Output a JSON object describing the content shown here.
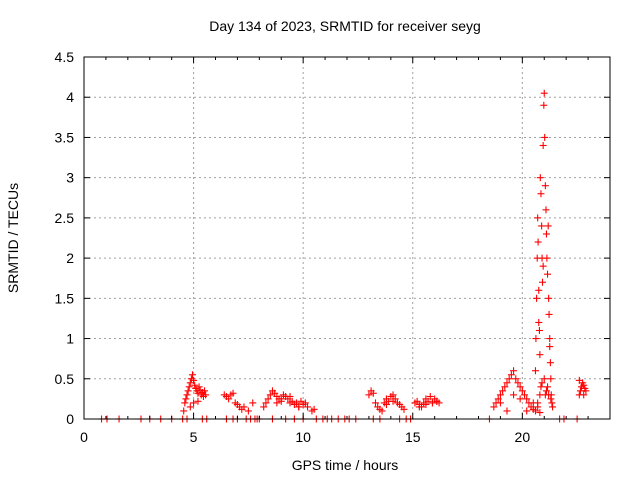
{
  "chart_data": {
    "type": "scatter",
    "title": "Day 134 of 2023, SRMTID for receiver seyg",
    "xlabel": "GPS time / hours",
    "ylabel": "SRMTID / TECUs",
    "xlim": [
      0,
      24
    ],
    "ylim": [
      0,
      4.5
    ],
    "grid": true,
    "xticks": [
      0,
      5,
      10,
      15,
      20
    ],
    "yticks": [
      0,
      0.5,
      1,
      1.5,
      2,
      2.5,
      3,
      3.5,
      4,
      4.5
    ],
    "xtick_labels": [
      "0",
      "5",
      "10",
      "15",
      "20"
    ],
    "ytick_labels": [
      "0",
      "0.5",
      "1",
      "1.5",
      "2",
      "2.5",
      "3",
      "3.5",
      "4",
      "4.5"
    ],
    "series": [
      {
        "name": "SRMTID",
        "marker": "+",
        "color": "#ff0000",
        "x": [
          0.8,
          1.05,
          1.6,
          2.6,
          3.0,
          3.5,
          4.0,
          4.5,
          4.55,
          4.6,
          4.65,
          4.7,
          4.75,
          4.8,
          4.85,
          4.9,
          4.95,
          5.0,
          5.05,
          5.1,
          5.15,
          5.2,
          5.25,
          5.3,
          5.35,
          5.4,
          5.45,
          5.5,
          5.55,
          4.7,
          4.85,
          5.0,
          5.2,
          5.4,
          5.6,
          6.4,
          6.5,
          6.6,
          6.7,
          6.8,
          6.9,
          7.0,
          7.1,
          7.2,
          6.5,
          6.8,
          7.0,
          7.3,
          7.5,
          7.6,
          7.8,
          7.9,
          7.4,
          7.7,
          8.0,
          8.2,
          8.3,
          8.4,
          8.5,
          8.6,
          8.7,
          8.8,
          8.9,
          9.0,
          9.1,
          9.2,
          9.3,
          9.4,
          9.5,
          9.6,
          9.7,
          9.8,
          9.9,
          10.0,
          10.1,
          10.2,
          8.6,
          8.8,
          9.0,
          9.2,
          9.4,
          9.6,
          9.8,
          10.0,
          10.4,
          10.5,
          10.6,
          10.9,
          11.1,
          11.3,
          11.6,
          11.9,
          12.1,
          12.4,
          13.0,
          13.1,
          13.2,
          13.3,
          13.4,
          13.5,
          13.6,
          13.7,
          13.8,
          13.9,
          14.0,
          14.1,
          14.2,
          14.3,
          14.4,
          14.5,
          14.6,
          13.2,
          13.5,
          13.8,
          14.1,
          14.4,
          14.7,
          14.9,
          15.1,
          15.2,
          15.3,
          15.4,
          15.5,
          15.6,
          15.7,
          15.8,
          15.9,
          16.0,
          16.1,
          16.2,
          15.3,
          15.6,
          15.9,
          16.1,
          18.5,
          18.7,
          18.8,
          18.9,
          19.0,
          19.1,
          19.2,
          19.3,
          19.4,
          19.5,
          19.6,
          19.7,
          19.8,
          19.9,
          20.0,
          20.1,
          20.2,
          20.3,
          20.4,
          20.5,
          20.6,
          20.7,
          19.0,
          19.3,
          19.6,
          19.9,
          20.2,
          20.5,
          20.8,
          20.6,
          20.62,
          20.65,
          20.68,
          20.7,
          20.72,
          20.75,
          20.78,
          20.8,
          20.82,
          20.85,
          20.88,
          20.9,
          20.92,
          20.95,
          20.98,
          21.0,
          21.02,
          21.05,
          21.08,
          21.1,
          21.12,
          21.15,
          21.18,
          21.2,
          21.22,
          21.25,
          21.28,
          21.3,
          21.32,
          21.35,
          21.38,
          20.7,
          20.8,
          20.85,
          20.9,
          21.0,
          21.05,
          21.1,
          21.15,
          21.2,
          21.3,
          20.75,
          20.95,
          21.25,
          21.7,
          21.9,
          22.5,
          22.6,
          22.65,
          22.7,
          22.75,
          22.8,
          22.85,
          22.9,
          22.6,
          22.8
        ],
        "y": [
          0,
          0,
          0,
          0,
          0,
          0,
          0,
          0,
          0.1,
          0.2,
          0.25,
          0.3,
          0.35,
          0.4,
          0.45,
          0.5,
          0.55,
          0.48,
          0.42,
          0.38,
          0.35,
          0.32,
          0.4,
          0.36,
          0.3,
          0.33,
          0.28,
          0.35,
          0.3,
          0,
          0.15,
          0.2,
          0.22,
          0,
          0,
          0.3,
          0.28,
          0.25,
          0.3,
          0.32,
          0.2,
          0.18,
          0.15,
          0.12,
          0,
          0,
          0,
          0.15,
          0.1,
          0,
          0,
          0,
          0,
          0.2,
          0,
          0.15,
          0.2,
          0.25,
          0.3,
          0.35,
          0.32,
          0.28,
          0.25,
          0.22,
          0.3,
          0.28,
          0.25,
          0.2,
          0.22,
          0.18,
          0.2,
          0.15,
          0.22,
          0.18,
          0.2,
          0.15,
          0,
          0.2,
          0.25,
          0,
          0.28,
          0,
          0.15,
          0,
          0.1,
          0.12,
          0,
          0,
          0,
          0,
          0,
          0,
          0,
          0,
          0.3,
          0.35,
          0.32,
          0.2,
          0.15,
          0.12,
          0.1,
          0.2,
          0.25,
          0.22,
          0.28,
          0.3,
          0.25,
          0.2,
          0.18,
          0.15,
          0.12,
          0,
          0,
          0.18,
          0.22,
          0,
          0,
          0,
          0.2,
          0.22,
          0.18,
          0.15,
          0.2,
          0.25,
          0.22,
          0.28,
          0.2,
          0.25,
          0.22,
          0.2,
          0.15,
          0.18,
          0.2,
          0.22,
          0,
          0.15,
          0.2,
          0.25,
          0.3,
          0.35,
          0.4,
          0.45,
          0.5,
          0.55,
          0.6,
          0.5,
          0.45,
          0.4,
          0.35,
          0.3,
          0.25,
          0.2,
          0.15,
          0.12,
          0.1,
          0.15,
          0.2,
          0.1,
          0.3,
          0.25,
          0.1,
          0.2,
          0.08,
          0.6,
          1.0,
          1.5,
          2.0,
          2.5,
          2.2,
          1.6,
          1.1,
          0.8,
          3.0,
          2.8,
          2.4,
          2.0,
          1.7,
          3.4,
          3.9,
          4.05,
          3.5,
          2.9,
          2.6,
          2.3,
          2.0,
          1.8,
          2.4,
          1.5,
          1.3,
          1.0,
          0.7,
          0.5,
          0.3,
          0.2,
          0.15,
          0.2,
          0.3,
          0.4,
          0.45,
          0.5,
          0.3,
          0.35,
          0.4,
          0.3,
          0.25,
          1.2,
          1.9,
          0.9,
          0,
          0,
          0,
          0.3,
          0.35,
          0.4,
          0.45,
          0.42,
          0.38,
          0.35,
          0.48,
          0.3
        ]
      }
    ]
  }
}
